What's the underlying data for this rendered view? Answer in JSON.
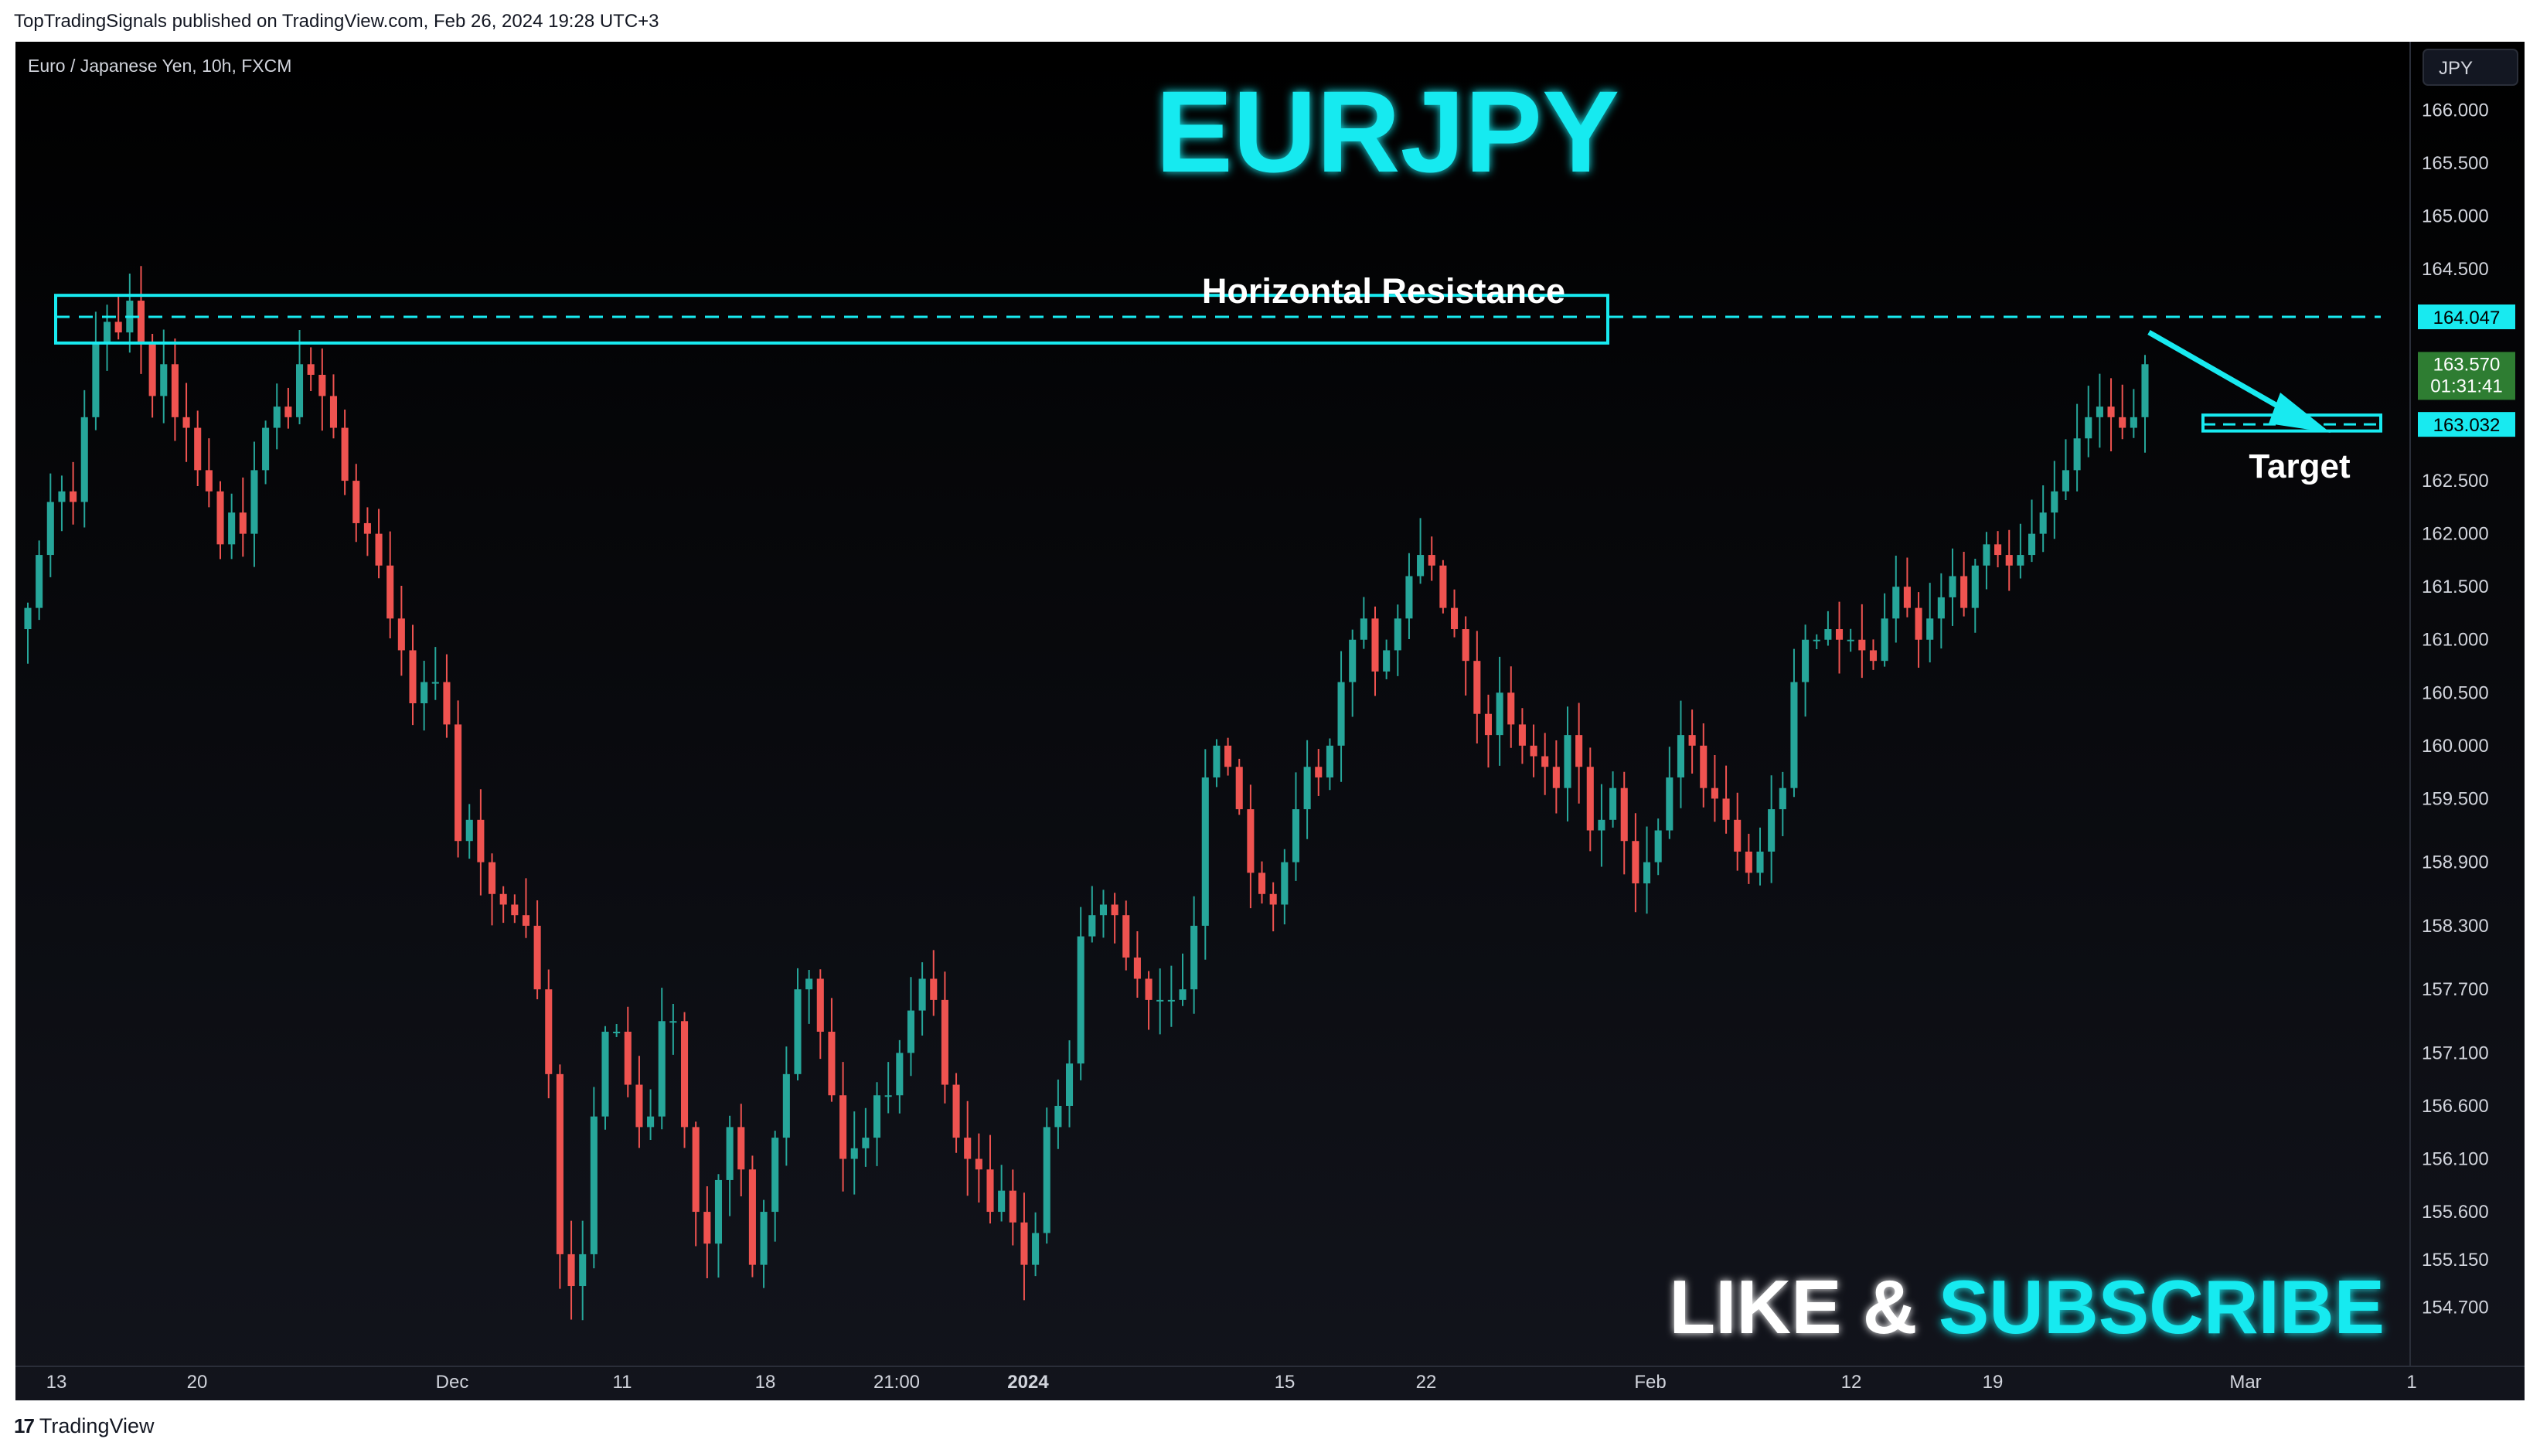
{
  "publisher_caption": "TopTradingSignals published on TradingView.com, Feb 26, 2024 19:28 UTC+3",
  "brand": {
    "logo": "17",
    "name": "TradingView"
  },
  "chart_data": {
    "type": "candlestick",
    "symbol_label": "Euro / Japanese Yen, 10h, FXCM",
    "title": "EURJPY",
    "currency_button": "JPY",
    "ylim": [
      154.2,
      166.6
    ],
    "y_ticks": [
      "166.000",
      "165.500",
      "165.000",
      "164.500",
      "162.500",
      "162.000",
      "161.500",
      "161.000",
      "160.500",
      "160.000",
      "159.500",
      "158.900",
      "158.300",
      "157.700",
      "157.100",
      "156.600",
      "156.100",
      "155.600",
      "155.150",
      "154.700"
    ],
    "x_ticks": [
      "13",
      "20",
      "Dec",
      "11",
      "18",
      "21:00",
      "2024",
      "15",
      "22",
      "Feb",
      "12",
      "19",
      "Mar",
      "1"
    ],
    "price_labels": {
      "resistance": "164.047",
      "last_price": "163.570",
      "countdown": "01:31:41",
      "target": "163.032"
    },
    "annotations": {
      "resistance_label": "Horizontal Resistance",
      "resistance_level": 164.047,
      "resistance_zone": [
        163.8,
        164.25
      ],
      "target_label": "Target",
      "target_level": 163.032,
      "target_zone": [
        162.97,
        163.12
      ],
      "cta": {
        "part1": "LIKE & ",
        "part2": "SUBSCRIBE"
      }
    },
    "colors": {
      "up": "#26a69a",
      "down": "#ef5350",
      "accent": "#18eaf0",
      "background": "#0c0e13",
      "axis_text": "#d1d4dc",
      "last_price_bg": "#2e7d32"
    },
    "closes": [
      161.3,
      161.8,
      162.3,
      162.4,
      162.3,
      163.1,
      163.8,
      164.0,
      163.9,
      164.2,
      163.8,
      163.3,
      163.6,
      163.1,
      163.0,
      162.6,
      162.4,
      161.9,
      162.2,
      162.0,
      162.6,
      163.0,
      163.2,
      163.1,
      163.6,
      163.5,
      163.3,
      163.0,
      162.5,
      162.1,
      162.0,
      161.7,
      161.2,
      160.9,
      160.4,
      160.6,
      160.6,
      160.2,
      159.1,
      159.3,
      158.9,
      158.6,
      158.5,
      158.4,
      158.3,
      157.7,
      156.9,
      155.2,
      154.9,
      155.2,
      156.5,
      157.3,
      157.3,
      156.8,
      156.4,
      156.5,
      157.4,
      157.4,
      156.4,
      155.6,
      155.3,
      155.9,
      156.4,
      156.0,
      155.1,
      155.6,
      156.3,
      156.9,
      157.7,
      157.8,
      157.3,
      156.7,
      156.1,
      156.2,
      156.3,
      156.7,
      156.7,
      157.1,
      157.5,
      157.8,
      157.6,
      156.8,
      156.3,
      156.1,
      156.0,
      155.6,
      155.8,
      155.5,
      155.1,
      155.4,
      156.4,
      156.6,
      157.0,
      158.2,
      158.4,
      158.5,
      158.4,
      158.0,
      157.8,
      157.6,
      157.6,
      157.6,
      157.7,
      158.3,
      159.7,
      160.0,
      159.8,
      159.4,
      158.8,
      158.6,
      158.5,
      158.9,
      159.4,
      159.8,
      159.7,
      160.0,
      160.6,
      161.0,
      161.2,
      160.7,
      160.9,
      161.2,
      161.6,
      161.8,
      161.7,
      161.3,
      161.1,
      160.8,
      160.3,
      160.1,
      160.5,
      160.2,
      160.0,
      159.9,
      159.8,
      159.6,
      160.1,
      159.8,
      159.2,
      159.3,
      159.6,
      159.1,
      158.7,
      158.9,
      159.2,
      159.7,
      160.1,
      160.0,
      159.6,
      159.5,
      159.3,
      159.0,
      158.8,
      159.0,
      159.4,
      159.6,
      160.6,
      161.0,
      161.0,
      161.1,
      161.0,
      161.0,
      160.9,
      160.8,
      161.2,
      161.5,
      161.3,
      161.0,
      161.2,
      161.4,
      161.6,
      161.3,
      161.7,
      161.9,
      161.8,
      161.7,
      161.8,
      162.0,
      162.2,
      162.4,
      162.6,
      162.9,
      163.1,
      163.2,
      163.1,
      163.0,
      163.1,
      163.6
    ]
  }
}
